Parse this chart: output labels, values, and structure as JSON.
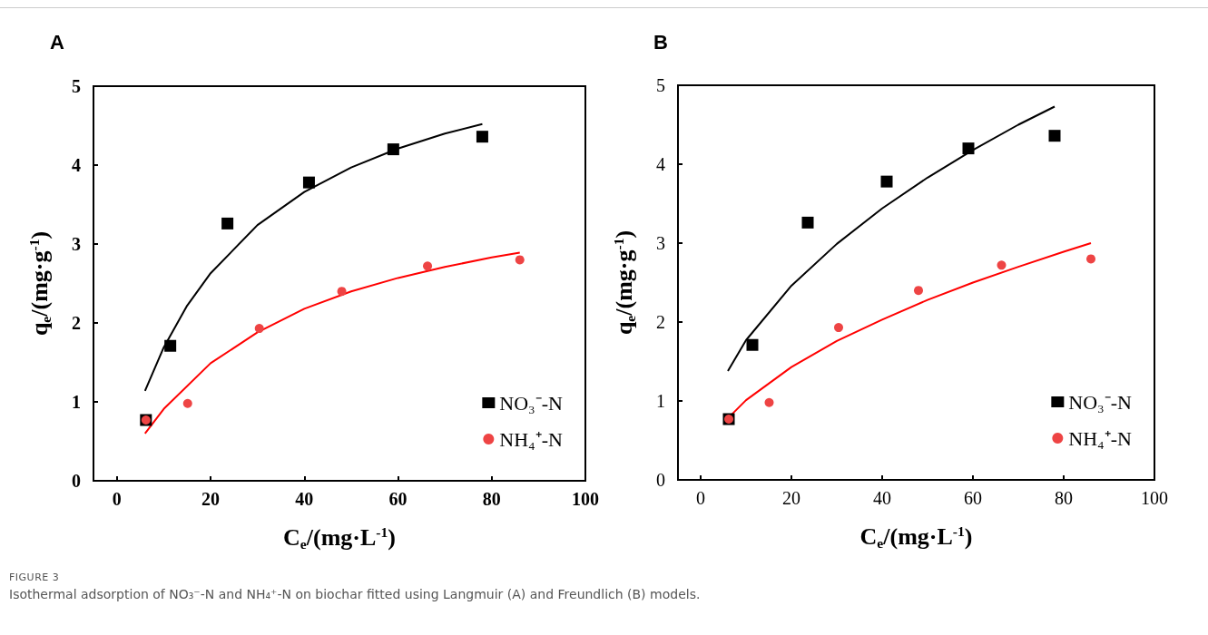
{
  "chart_data": [
    {
      "type": "scatter",
      "title": "A",
      "xlabel": "C$_{e}$/(mg·L$^{-1}$)",
      "ylabel": "q$_{e}$/(mg·g$^{-1}$)",
      "xlim": [
        -5,
        100
      ],
      "xticks": [
        0,
        20,
        40,
        60,
        80,
        100
      ],
      "ylim": [
        0,
        5
      ],
      "yticks": [
        0,
        1,
        2,
        3,
        4,
        5
      ],
      "grid": false,
      "legend": "bottom right",
      "series": [
        {
          "name": "NO₃⁻-N",
          "type": "scatter",
          "marker": "square",
          "color": "#000000",
          "x": [
            6.2,
            11.4,
            23.6,
            41,
            59,
            78
          ],
          "values": [
            0.77,
            1.71,
            3.26,
            3.78,
            4.2,
            4.36
          ]
        },
        {
          "name": "NH₄⁺-N",
          "type": "scatter",
          "marker": "circle",
          "color": "#ee4444",
          "x": [
            6.2,
            15.1,
            30.4,
            48,
            66.3,
            86
          ],
          "values": [
            0.77,
            0.98,
            1.93,
            2.4,
            2.72,
            2.8
          ]
        },
        {
          "type": "line",
          "marker": "none",
          "color": "#000000",
          "x": [
            6,
            10,
            15,
            20,
            30,
            40,
            50,
            60,
            70,
            78
          ],
          "values": [
            1.14,
            1.69,
            2.22,
            2.63,
            3.24,
            3.66,
            3.97,
            4.21,
            4.4,
            4.52
          ]
        },
        {
          "type": "line",
          "marker": "none",
          "color": "#ff0000",
          "x": [
            6,
            10,
            20,
            30,
            40,
            50,
            60,
            70,
            80,
            86
          ],
          "values": [
            0.6,
            0.91,
            1.49,
            1.88,
            2.18,
            2.4,
            2.57,
            2.71,
            2.83,
            2.89
          ]
        }
      ],
      "annotations": [
        "FIGURE 3",
        "Isothermal adsorption of NO₃⁻-N and NH₄⁺-N on biochar fitted using Langmuir (A) and Freundlich (B) models."
      ]
    },
    {
      "type": "scatter",
      "title": "B",
      "xlabel": "C$_{e}$/(mg·L$^{-1}$)",
      "ylabel": "q$_{e}$/(mg·g$^{-1}$)",
      "xlim": [
        -5,
        100
      ],
      "xticks": [
        0,
        20,
        40,
        60,
        80,
        100
      ],
      "ylim": [
        0,
        5
      ],
      "yticks": [
        0,
        1,
        2,
        3,
        4,
        5
      ],
      "grid": false,
      "legend": "bottom right",
      "series": [
        {
          "name": "NO₃⁻-N",
          "type": "scatter",
          "marker": "square",
          "color": "#000000",
          "x": [
            6.2,
            11.4,
            23.6,
            41,
            59,
            78
          ],
          "values": [
            0.77,
            1.71,
            3.26,
            3.78,
            4.2,
            4.36
          ]
        },
        {
          "name": "NH₄⁺-N",
          "type": "scatter",
          "marker": "circle",
          "color": "#ee4444",
          "x": [
            6.2,
            15.1,
            30.4,
            48,
            66.3,
            86
          ],
          "values": [
            0.77,
            0.98,
            1.93,
            2.4,
            2.72,
            2.8
          ]
        },
        {
          "type": "line",
          "marker": "none",
          "color": "#000000",
          "x": [
            6,
            10,
            20,
            30,
            40,
            50,
            60,
            70,
            78
          ],
          "values": [
            1.38,
            1.77,
            2.46,
            2.99,
            3.44,
            3.83,
            4.18,
            4.5,
            4.73
          ]
        },
        {
          "type": "line",
          "marker": "none",
          "color": "#ff0000",
          "x": [
            6,
            10,
            20,
            30,
            40,
            50,
            60,
            70,
            80,
            86
          ],
          "values": [
            0.78,
            1.01,
            1.43,
            1.76,
            2.03,
            2.28,
            2.5,
            2.7,
            2.89,
            3.0
          ]
        }
      ]
    }
  ]
}
